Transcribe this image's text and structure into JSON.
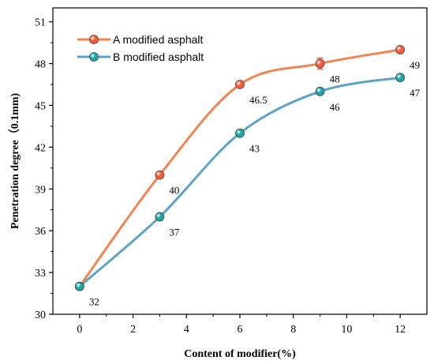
{
  "chart_data": {
    "type": "line",
    "xlabel": "Content of modifier(%)",
    "ylabel": "Penetration degree（0.1mm)",
    "xlim": [
      -1,
      13
    ],
    "ylim": [
      30,
      52
    ],
    "xticks": [
      0,
      2,
      4,
      6,
      8,
      10,
      12
    ],
    "yticks": [
      30,
      33,
      36,
      39,
      42,
      45,
      48,
      51
    ],
    "legend_position": "top-left",
    "series": [
      {
        "name": "A modified asphalt",
        "color": "#f08552",
        "marker_color": "#ff5a36",
        "x": [
          0,
          3,
          6,
          9,
          12
        ],
        "y": [
          32,
          40,
          46.5,
          48,
          49
        ],
        "labels": [
          "",
          "40",
          "46.5",
          "48",
          "49"
        ],
        "error": [
          0,
          0,
          0,
          0.4,
          0
        ]
      },
      {
        "name": "B modified asphalt",
        "color": "#5fa3c8",
        "marker_color": "#1aa7a7",
        "x": [
          0,
          3,
          6,
          9,
          12
        ],
        "y": [
          32,
          37,
          43,
          46,
          47
        ],
        "labels": [
          "32",
          "37",
          "43",
          "46",
          "47"
        ],
        "error": [
          0,
          0,
          0,
          0,
          0
        ]
      }
    ]
  }
}
